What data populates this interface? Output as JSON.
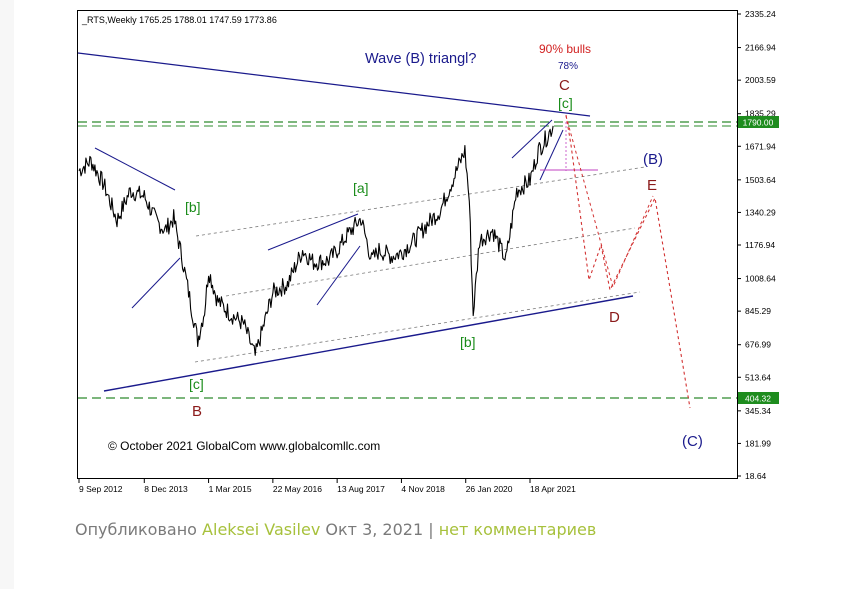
{
  "chart_data": {
    "type": "line",
    "instrument_header": "_RTS,Weekly  1765.25 1788.01 1747.59 1773.86",
    "x_ticks": [
      "9 Sep 2012",
      "8 Dec 2013",
      "1 Mar 2015",
      "22 May 2016",
      "13 Aug 2017",
      "4 Nov 2018",
      "26 Jan 2020",
      "18 Apr 2021"
    ],
    "y_ticks": [
      "2335.24",
      "2166.94",
      "2003.59",
      "1835.29",
      "1671.94",
      "1503.64",
      "1340.29",
      "1176.94",
      "1008.64",
      "845.29",
      "676.99",
      "513.64",
      "345.34",
      "181.99",
      "18.64"
    ],
    "ylim": [
      18.64,
      2335.24
    ],
    "price_labels": [
      {
        "text": "1790.00",
        "y": 1790.0
      },
      {
        "text": "404.32",
        "y": 404.32
      }
    ],
    "series": [
      {
        "x": [
          "2012-09-09",
          "2012-12-01",
          "2013-03-01",
          "2013-06-01",
          "2013-09-01",
          "2013-12-08",
          "2014-03-01",
          "2014-05-01",
          "2014-07-01",
          "2014-09-01",
          "2014-12-15",
          "2015-02-01",
          "2015-03-01",
          "2015-05-01",
          "2015-08-01",
          "2015-11-01",
          "2016-01-20",
          "2016-05-22",
          "2016-09-01",
          "2016-12-15",
          "2017-03-01",
          "2017-06-15",
          "2017-08-13",
          "2017-10-15",
          "2018-01-26",
          "2018-04-10",
          "2018-06-01",
          "2018-09-01",
          "2018-11-04",
          "2019-02-01",
          "2019-05-01",
          "2019-08-01",
          "2020-01-20",
          "2020-02-20",
          "2020-03-18",
          "2020-05-01",
          "2020-08-01",
          "2020-11-01",
          "2021-01-15",
          "2021-04-18",
          "2021-06-15",
          "2021-08-15",
          "2021-09-26"
        ],
        "y": [
          1550,
          1600,
          1480,
          1300,
          1450,
          1420,
          1300,
          1250,
          1310,
          1100,
          700,
          850,
          1050,
          900,
          830,
          780,
          620,
          940,
          980,
          1150,
          1090,
          1100,
          1150,
          1220,
          1310,
          1100,
          1150,
          1120,
          1140,
          1200,
          1280,
          1350,
          1650,
          1400,
          830,
          1200,
          1250,
          1100,
          1450,
          1500,
          1650,
          1720,
          1774
        ]
      }
    ],
    "annotations": {
      "header": "_RTS,Weekly  1765.25 1788.01 1747.59 1773.86",
      "wave_title": "Wave (B) triangl?",
      "bulls_pct": "90% bulls",
      "pct_78": "78%",
      "label_C": "C",
      "label_c_top": "[c]",
      "label_B_paren": "(B)",
      "label_E": "E",
      "label_a": "[a]",
      "label_b_left": "[b]",
      "label_b_mid": "[b]",
      "label_D": "D",
      "label_c_bottom": "[c]",
      "label_B": "B",
      "label_C_paren": "(C)",
      "copyright": "© October 2021 GlobalCom www.globalcomllc.com"
    }
  },
  "byline": {
    "prefix": "Опубликовано",
    "author": "Aleksei Vasilev",
    "date": "Окт 3, 2021",
    "separator": "|",
    "comments": "нет комментариев"
  },
  "colors": {
    "price_line": "#000000",
    "trend_lines": "#1a1a8c",
    "green_labels": "#1a8c1a",
    "red_labels": "#8b1a1a",
    "forecast": "#d23232",
    "dashed_levels": "#2e8b2e",
    "link": "#a7c13c"
  }
}
